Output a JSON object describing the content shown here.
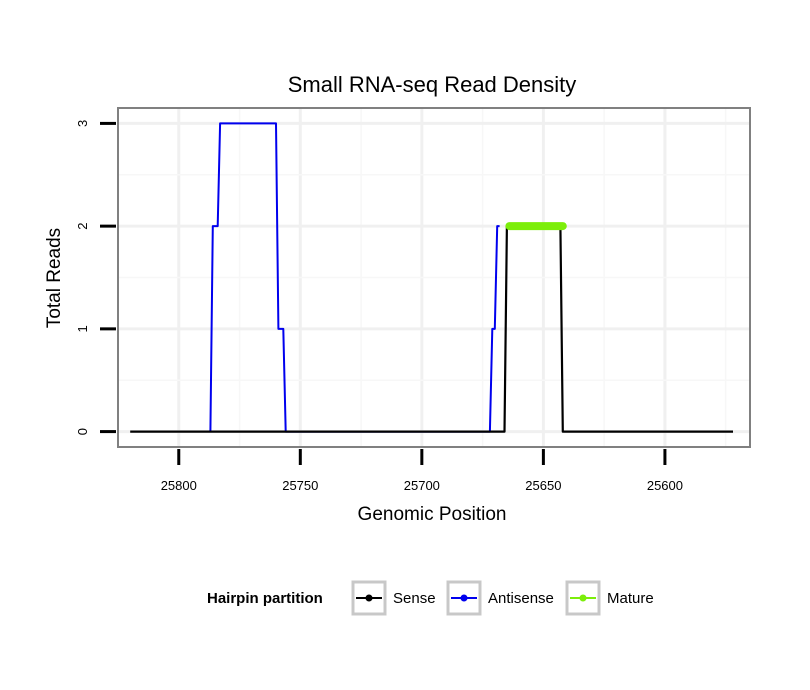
{
  "chart_data": {
    "type": "line",
    "title": "Small RNA-seq Read Density",
    "xlabel": "Genomic Position",
    "ylabel": "Total Reads",
    "x_reversed": true,
    "xlim": [
      25825,
      25565
    ],
    "ylim": [
      -0.15,
      3.15
    ],
    "x_ticks": [
      25800,
      25750,
      25700,
      25650,
      25600
    ],
    "x_tick_labels": [
      "25800",
      "25750",
      "25700",
      "25650",
      "25600"
    ],
    "y_ticks": [
      0,
      1,
      2,
      3
    ],
    "y_tick_labels": [
      "0",
      "1",
      "2",
      "3"
    ],
    "grid": true,
    "legend": {
      "title": "Hairpin partition",
      "position": "bottom",
      "entries": [
        "Sense",
        "Antisense",
        "Mature"
      ]
    },
    "series": [
      {
        "name": "Antisense",
        "color": "#0000ee",
        "points": [
          [
            25787,
            0
          ],
          [
            25786,
            2
          ],
          [
            25784,
            2
          ],
          [
            25783,
            3
          ],
          [
            25760,
            3
          ],
          [
            25759,
            1
          ],
          [
            25757,
            1
          ],
          [
            25756,
            0
          ],
          [
            25672,
            0
          ],
          [
            25671,
            1
          ],
          [
            25670,
            1
          ],
          [
            25669,
            2
          ],
          [
            25668,
            2
          ]
        ]
      },
      {
        "name": "Sense",
        "color": "#000000",
        "points": [
          [
            25820,
            0
          ],
          [
            25666,
            0
          ],
          [
            25665,
            2
          ],
          [
            25643,
            2
          ],
          [
            25642,
            0
          ],
          [
            25572,
            0
          ]
        ]
      },
      {
        "name": "Mature",
        "color": "#7cee0a",
        "points": [
          [
            25664,
            2
          ],
          [
            25642,
            2
          ]
        ]
      }
    ]
  }
}
